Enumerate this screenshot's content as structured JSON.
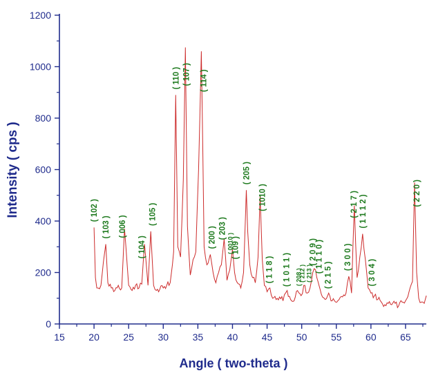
{
  "chart_data": {
    "type": "line",
    "xlabel": "Angle ( two-theta )",
    "ylabel": "Intensity ( cps )",
    "xlim": [
      15,
      68
    ],
    "ylim": [
      0,
      1200
    ],
    "x_ticks": [
      "15",
      "20",
      "25",
      "30",
      "35",
      "40",
      "45",
      "50",
      "55",
      "60",
      "65"
    ],
    "y_ticks": [
      "0",
      "200",
      "400",
      "600",
      "800",
      "1000",
      "1200"
    ],
    "grid": false,
    "colors": {
      "line": "#cc2a2a",
      "axis": "#1f2b8c",
      "peak_labels": "#1e7a1e"
    },
    "series": [
      {
        "x": [
          20.0,
          20.2,
          20.4,
          21.0,
          21.7,
          22.0,
          22.5,
          23.0,
          23.5,
          24.0,
          24.4,
          25.0,
          25.5,
          26.0,
          26.5,
          26.9,
          27.3,
          27.8,
          28.2,
          28.6,
          29.0,
          29.5,
          30.0,
          30.5,
          31.0,
          31.5,
          31.8,
          32.1,
          32.5,
          32.9,
          33.2,
          33.5,
          33.9,
          34.3,
          34.7,
          35.1,
          35.5,
          35.7,
          35.9,
          36.3,
          36.8,
          37.2,
          37.6,
          38.0,
          38.4,
          38.8,
          39.2,
          39.6,
          40.0,
          40.3,
          40.7,
          41.2,
          41.6,
          42.0,
          42.2,
          42.5,
          42.9,
          43.3,
          43.7,
          44.0,
          44.3,
          44.6,
          45.0,
          45.4,
          45.8,
          46.3,
          46.8,
          47.3,
          47.9,
          48.4,
          48.9,
          49.4,
          49.9,
          50.3,
          50.8,
          51.2,
          51.6,
          52.0,
          52.5,
          53.0,
          53.4,
          53.9,
          54.4,
          54.9,
          55.4,
          55.9,
          56.4,
          56.8,
          57.2,
          57.6,
          58.0,
          58.4,
          58.8,
          59.2,
          59.6,
          60.0,
          60.5,
          61.0,
          61.5,
          62.0,
          62.5,
          63.0,
          63.5,
          64.0,
          64.5,
          65.0,
          65.5,
          66.0,
          66.3,
          66.6,
          66.9,
          67.3,
          67.7,
          68.0
        ],
        "y": [
          375,
          180,
          140,
          150,
          310,
          160,
          140,
          130,
          150,
          140,
          370,
          150,
          130,
          150,
          140,
          155,
          310,
          150,
          360,
          150,
          130,
          135,
          140,
          150,
          160,
          280,
          890,
          300,
          260,
          560,
          1075,
          380,
          190,
          250,
          280,
          600,
          1060,
          700,
          300,
          230,
          270,
          200,
          160,
          200,
          230,
          330,
          170,
          210,
          290,
          200,
          160,
          140,
          200,
          520,
          360,
          230,
          180,
          160,
          260,
          500,
          250,
          150,
          125,
          140,
          100,
          95,
          105,
          90,
          130,
          95,
          90,
          130,
          110,
          150,
          120,
          140,
          200,
          210,
          150,
          105,
          95,
          120,
          90,
          85,
          95,
          105,
          120,
          185,
          120,
          460,
          180,
          260,
          350,
          250,
          140,
          120,
          110,
          95,
          85,
          75,
          80,
          75,
          80,
          70,
          85,
          90,
          125,
          165,
          550,
          200,
          100,
          85,
          80,
          110
        ]
      }
    ],
    "annotations": [
      {
        "label": "( 102 )",
        "x": 20.0
      },
      {
        "label": "( 103 )",
        "x": 21.7
      },
      {
        "label": "( 006 )",
        "x": 24.1
      },
      {
        "label": "( 104 )",
        "x": 26.9
      },
      {
        "label": "( 105 )",
        "x": 28.4
      },
      {
        "label": "( 110 )",
        "x": 31.8
      },
      {
        "label": "( 107 )",
        "x": 33.3
      },
      {
        "label": "( 114 )",
        "x": 35.8
      },
      {
        "label": "( 200 )",
        "x": 37.0
      },
      {
        "label": "( 203 )",
        "x": 38.5
      },
      {
        "label": "( 0010 )",
        "x": 39.6
      },
      {
        "label": "( 109 )",
        "x": 40.4
      },
      {
        "label": "( 205 )",
        "x": 42.0
      },
      {
        "label": "( 1010 )",
        "x": 44.3
      },
      {
        "label": "( 1 1 8 )",
        "x": 45.3
      },
      {
        "label": "( 1 0 1 1 )",
        "x": 47.8
      },
      {
        "label": "( 208 )",
        "x": 49.5
      },
      {
        "label": "( 212 )",
        "x": 50.0
      },
      {
        "label": "( 213 )",
        "x": 51.0
      },
      {
        "label": "( 2 0 9 )",
        "x": 51.6
      },
      {
        "label": "( 1 1 1 0 )",
        "x": 52.5
      },
      {
        "label": "( 2 1 5 )",
        "x": 53.8
      },
      {
        "label": "( 3 0 0 )",
        "x": 56.6
      },
      {
        "label": "( 2 1 7 )",
        "x": 57.5
      },
      {
        "label": "( 1 1 1 2 )",
        "x": 58.8
      },
      {
        "label": "( 3 0 4 )",
        "x": 60.1
      },
      {
        "label": "( 2 2 0 )",
        "x": 66.6
      }
    ]
  }
}
